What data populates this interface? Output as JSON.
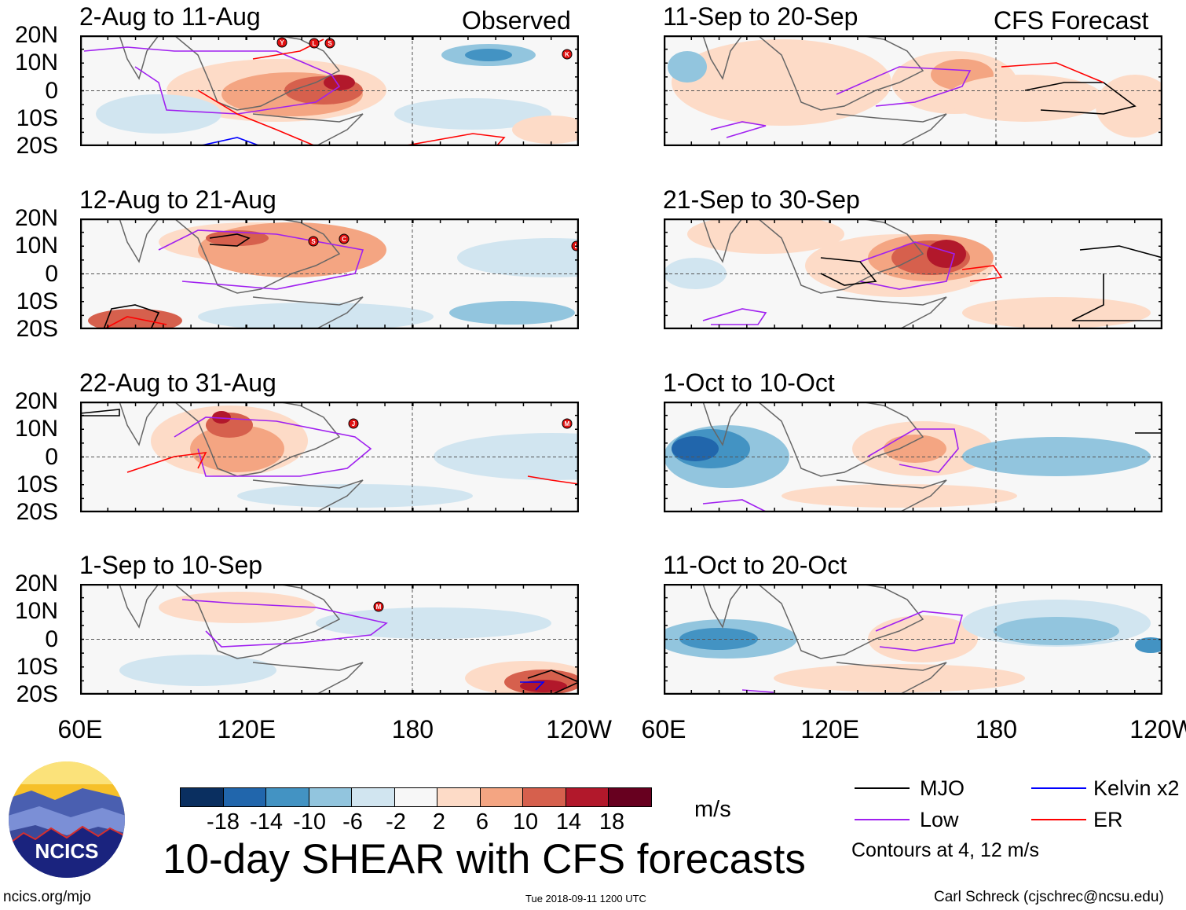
{
  "header": {
    "observed_label": "Observed",
    "forecast_label": "CFS Forecast"
  },
  "panels": [
    {
      "title": "2-Aug to 11-Aug",
      "storms": [
        "Y",
        "L",
        "S",
        "K"
      ]
    },
    {
      "title": "12-Aug to 21-Aug",
      "storms": [
        "S",
        "C",
        "L"
      ]
    },
    {
      "title": "22-Aug to 31-Aug",
      "storms": [
        "J",
        "M"
      ]
    },
    {
      "title": "1-Sep to 10-Sep",
      "storms": [
        "M"
      ]
    },
    {
      "title": "11-Sep to 20-Sep",
      "storms": []
    },
    {
      "title": "21-Sep to 30-Sep",
      "storms": []
    },
    {
      "title": "1-Oct to 10-Oct",
      "storms": []
    },
    {
      "title": "11-Oct to 20-Oct",
      "storms": []
    }
  ],
  "lat_labels": [
    "20N",
    "10N",
    "0",
    "10S",
    "20S"
  ],
  "lon_labels": [
    "60E",
    "120E",
    "180",
    "120W"
  ],
  "colorbar": {
    "colors": [
      "#0a2f60",
      "#2166ac",
      "#4393c3",
      "#92c5de",
      "#d1e5f0",
      "#f7f7f7",
      "#fddbc7",
      "#f4a582",
      "#d6604d",
      "#b2182b",
      "#67001f"
    ],
    "labels": [
      "-18",
      "-14",
      "-10",
      "-6",
      "-2",
      "2",
      "6",
      "10",
      "14",
      "18"
    ],
    "units": "m/s"
  },
  "legend": {
    "items": [
      {
        "label": "MJO",
        "color": "#000000"
      },
      {
        "label": "Kelvin x2",
        "color": "#0000ff"
      },
      {
        "label": "Low",
        "color": "#a020f0"
      },
      {
        "label": "ER",
        "color": "#ff0000"
      }
    ],
    "note": "Contours at 4, 12 m/s"
  },
  "title": "10-day SHEAR with CFS forecasts",
  "logo_text": "NCICS",
  "footer": {
    "url": "ncics.org/mjo",
    "timestamp": "Tue 2018-09-11 1200 UTC",
    "author": "Carl Schreck (cjschrec@ncsu.edu)"
  }
}
